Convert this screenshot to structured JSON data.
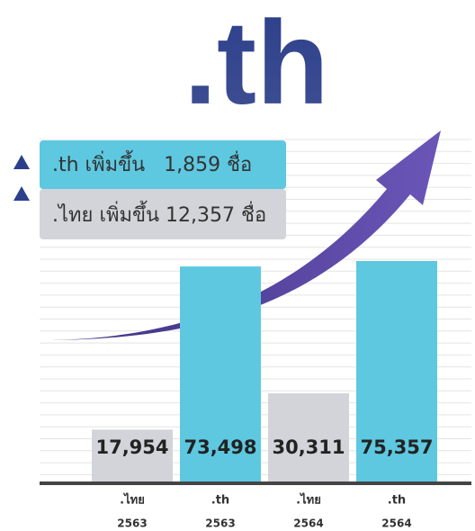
{
  "chart_data": {
    "type": "bar",
    "title": ".th",
    "annotations": [
      ".th เพิ่มขึ้น   1,859 ชื่อ",
      ".ไทย เพิ่มขึ้น 12,357 ชื่อ"
    ],
    "categories": [
      ".ไทย",
      ".th",
      ".ไทย",
      ".th"
    ],
    "years": [
      "2563",
      "2563",
      "2564",
      "2564"
    ],
    "values": [
      17954,
      73498,
      30311,
      75357
    ],
    "value_labels": [
      "17,954",
      "73,498",
      "30,311",
      "75,357"
    ],
    "colors": [
      "#d2d4d9",
      "#5ec8e0",
      "#d2d4d9",
      "#5ec8e0"
    ]
  }
}
